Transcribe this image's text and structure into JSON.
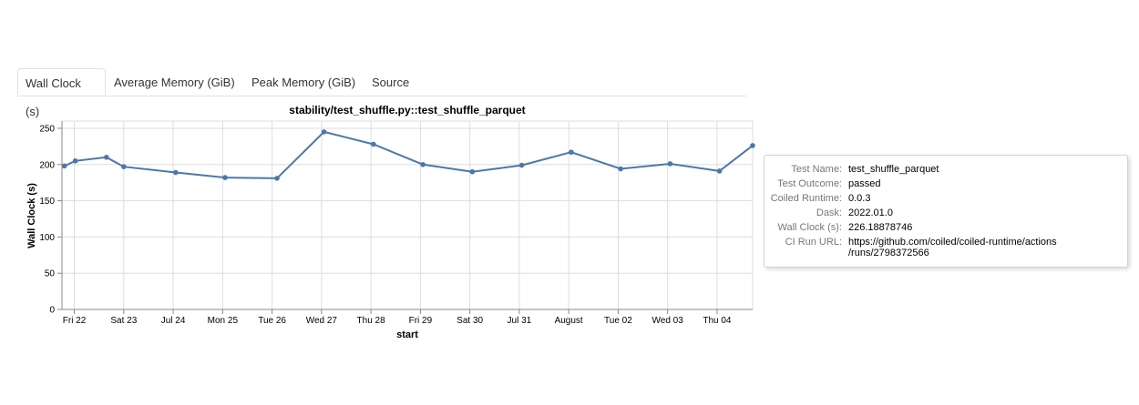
{
  "tabs": [
    {
      "label": "Wall Clock (s)",
      "active": true
    },
    {
      "label": "Average Memory (GiB)",
      "active": false
    },
    {
      "label": "Peak Memory (GiB)",
      "active": false
    },
    {
      "label": "Source",
      "active": false
    }
  ],
  "chart_data": {
    "type": "line",
    "title": "stability/test_shuffle.py::test_shuffle_parquet",
    "xlabel": "start",
    "ylabel": "Wall Clock (s)",
    "ylim": [
      0,
      260
    ],
    "yticks": [
      0,
      50,
      100,
      150,
      200,
      250
    ],
    "xlim_days": [
      -0.25,
      13.72
    ],
    "xticks": [
      {
        "day": 0,
        "label": "Fri 22"
      },
      {
        "day": 1,
        "label": "Sat 23"
      },
      {
        "day": 2,
        "label": "Jul 24"
      },
      {
        "day": 3,
        "label": "Mon 25"
      },
      {
        "day": 4,
        "label": "Tue 26"
      },
      {
        "day": 5,
        "label": "Wed 27"
      },
      {
        "day": 6,
        "label": "Thu 28"
      },
      {
        "day": 7,
        "label": "Fri 29"
      },
      {
        "day": 8,
        "label": "Sat 30"
      },
      {
        "day": 9,
        "label": "Jul 31"
      },
      {
        "day": 10,
        "label": "August"
      },
      {
        "day": 11,
        "label": "Tue 02"
      },
      {
        "day": 12,
        "label": "Wed 03"
      },
      {
        "day": 13,
        "label": "Thu 04"
      }
    ],
    "series": [
      {
        "color": "#4c78a8",
        "points": [
          {
            "x": -0.2,
            "y": 198
          },
          {
            "x": 0.02,
            "y": 205
          },
          {
            "x": 0.65,
            "y": 210
          },
          {
            "x": 1.0,
            "y": 197
          },
          {
            "x": 2.05,
            "y": 189
          },
          {
            "x": 3.05,
            "y": 182
          },
          {
            "x": 4.1,
            "y": 181
          },
          {
            "x": 5.05,
            "y": 245
          },
          {
            "x": 6.05,
            "y": 228
          },
          {
            "x": 7.05,
            "y": 200
          },
          {
            "x": 8.05,
            "y": 190
          },
          {
            "x": 9.05,
            "y": 199
          },
          {
            "x": 10.05,
            "y": 217
          },
          {
            "x": 11.05,
            "y": 194
          },
          {
            "x": 12.05,
            "y": 201
          },
          {
            "x": 13.05,
            "y": 191
          },
          {
            "x": 13.72,
            "y": 226.18878746
          }
        ]
      }
    ],
    "grid": true
  },
  "tooltip": {
    "rows": [
      {
        "key": "Test Name:",
        "value": "test_shuffle_parquet"
      },
      {
        "key": "Test Outcome:",
        "value": "passed"
      },
      {
        "key": "Coiled Runtime:",
        "value": "0.0.3"
      },
      {
        "key": "Dask:",
        "value": "2022.01.0"
      },
      {
        "key": "Wall Clock (s):",
        "value": "226.18878746"
      },
      {
        "key": "CI Run URL:",
        "value": "https://github.com/coiled/coiled-runtime/actions\n/runs/2798372566"
      }
    ]
  }
}
